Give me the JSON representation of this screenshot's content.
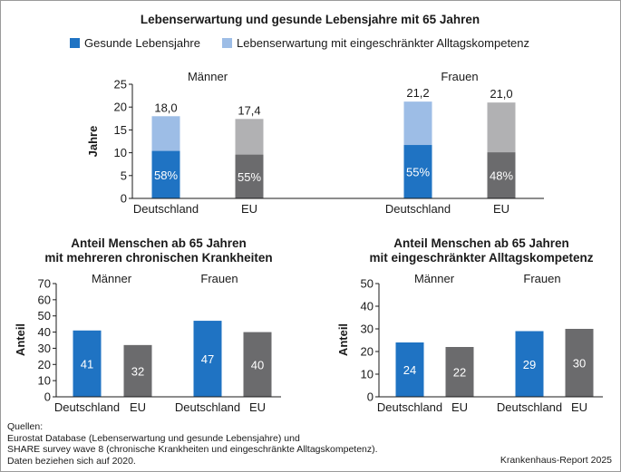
{
  "colors": {
    "healthy_blue": "#1f73c3",
    "restricted_light_blue": "#9dbde6",
    "eu_dark_gray": "#6b6b6d",
    "eu_light_gray": "#b1b1b3"
  },
  "legend": {
    "item1": "Gesunde Lebensjahre",
    "item2": "Lebenserwartung mit eingeschränkter Alltagskompetenz"
  },
  "chart_data": [
    {
      "type": "bar",
      "stacked": true,
      "title": "Lebenserwartung und gesunde Lebensjahre mit 65 Jahren",
      "ylabel": "Jahre",
      "ylim": [
        0,
        25
      ],
      "yticks": [
        "0",
        "5",
        "10",
        "15",
        "20",
        "25"
      ],
      "groups": [
        "Männer",
        "Frauen"
      ],
      "categories": [
        "Deutschland",
        "EU",
        "Deutschland",
        "EU"
      ],
      "totals": [
        18.0,
        17.4,
        21.2,
        21.0
      ],
      "total_labels": [
        "18,0",
        "17,4",
        "21,2",
        "21,0"
      ],
      "healthy_share_labels": [
        "58%",
        "55%",
        "55%",
        "48%"
      ],
      "healthy_years": [
        10.4,
        9.6,
        11.7,
        10.1
      ],
      "series": [
        {
          "name": "Gesunde Lebensjahre",
          "values": [
            10.4,
            9.6,
            11.7,
            10.1
          ]
        },
        {
          "name": "Lebenserwartung mit eingeschränkter Alltagskompetenz",
          "values": [
            7.6,
            7.8,
            9.5,
            10.9
          ]
        }
      ]
    },
    {
      "type": "bar",
      "title_line1": "Anteil Menschen ab 65 Jahren",
      "title_line2": "mit mehreren chronischen Krankheiten",
      "ylabel": "Anteil",
      "ylim": [
        0,
        70
      ],
      "yticks": [
        "0",
        "10",
        "20",
        "30",
        "40",
        "50",
        "60",
        "70"
      ],
      "groups": [
        "Männer",
        "Frauen"
      ],
      "categories": [
        "Deutschland",
        "EU",
        "Deutschland",
        "EU"
      ],
      "values": [
        41,
        32,
        47,
        40
      ],
      "value_labels": [
        "41",
        "32",
        "47",
        "40"
      ]
    },
    {
      "type": "bar",
      "title_line1": "Anteil Menschen ab 65 Jahren",
      "title_line2": "mit eingeschränkter Alltagskompetenz",
      "ylabel": "Anteil",
      "ylim": [
        0,
        50
      ],
      "yticks": [
        "0",
        "10",
        "20",
        "30",
        "40",
        "50"
      ],
      "groups": [
        "Männer",
        "Frauen"
      ],
      "categories": [
        "Deutschland",
        "EU",
        "Deutschland",
        "EU"
      ],
      "values": [
        24,
        22,
        29,
        30
      ],
      "value_labels": [
        "24",
        "22",
        "29",
        "30"
      ]
    }
  ],
  "footer": {
    "sources_line1": "Quellen:",
    "sources_line2": "Eurostat Database (Lebenserwartung und gesunde Lebensjahre) und",
    "sources_line3": "SHARE survey wave 8 (chronische Krankheiten und eingeschränkte Alltagskompetenz).",
    "sources_line4": "Daten beziehen sich auf 2020.",
    "credit": "Krankenhaus-Report 2025"
  }
}
